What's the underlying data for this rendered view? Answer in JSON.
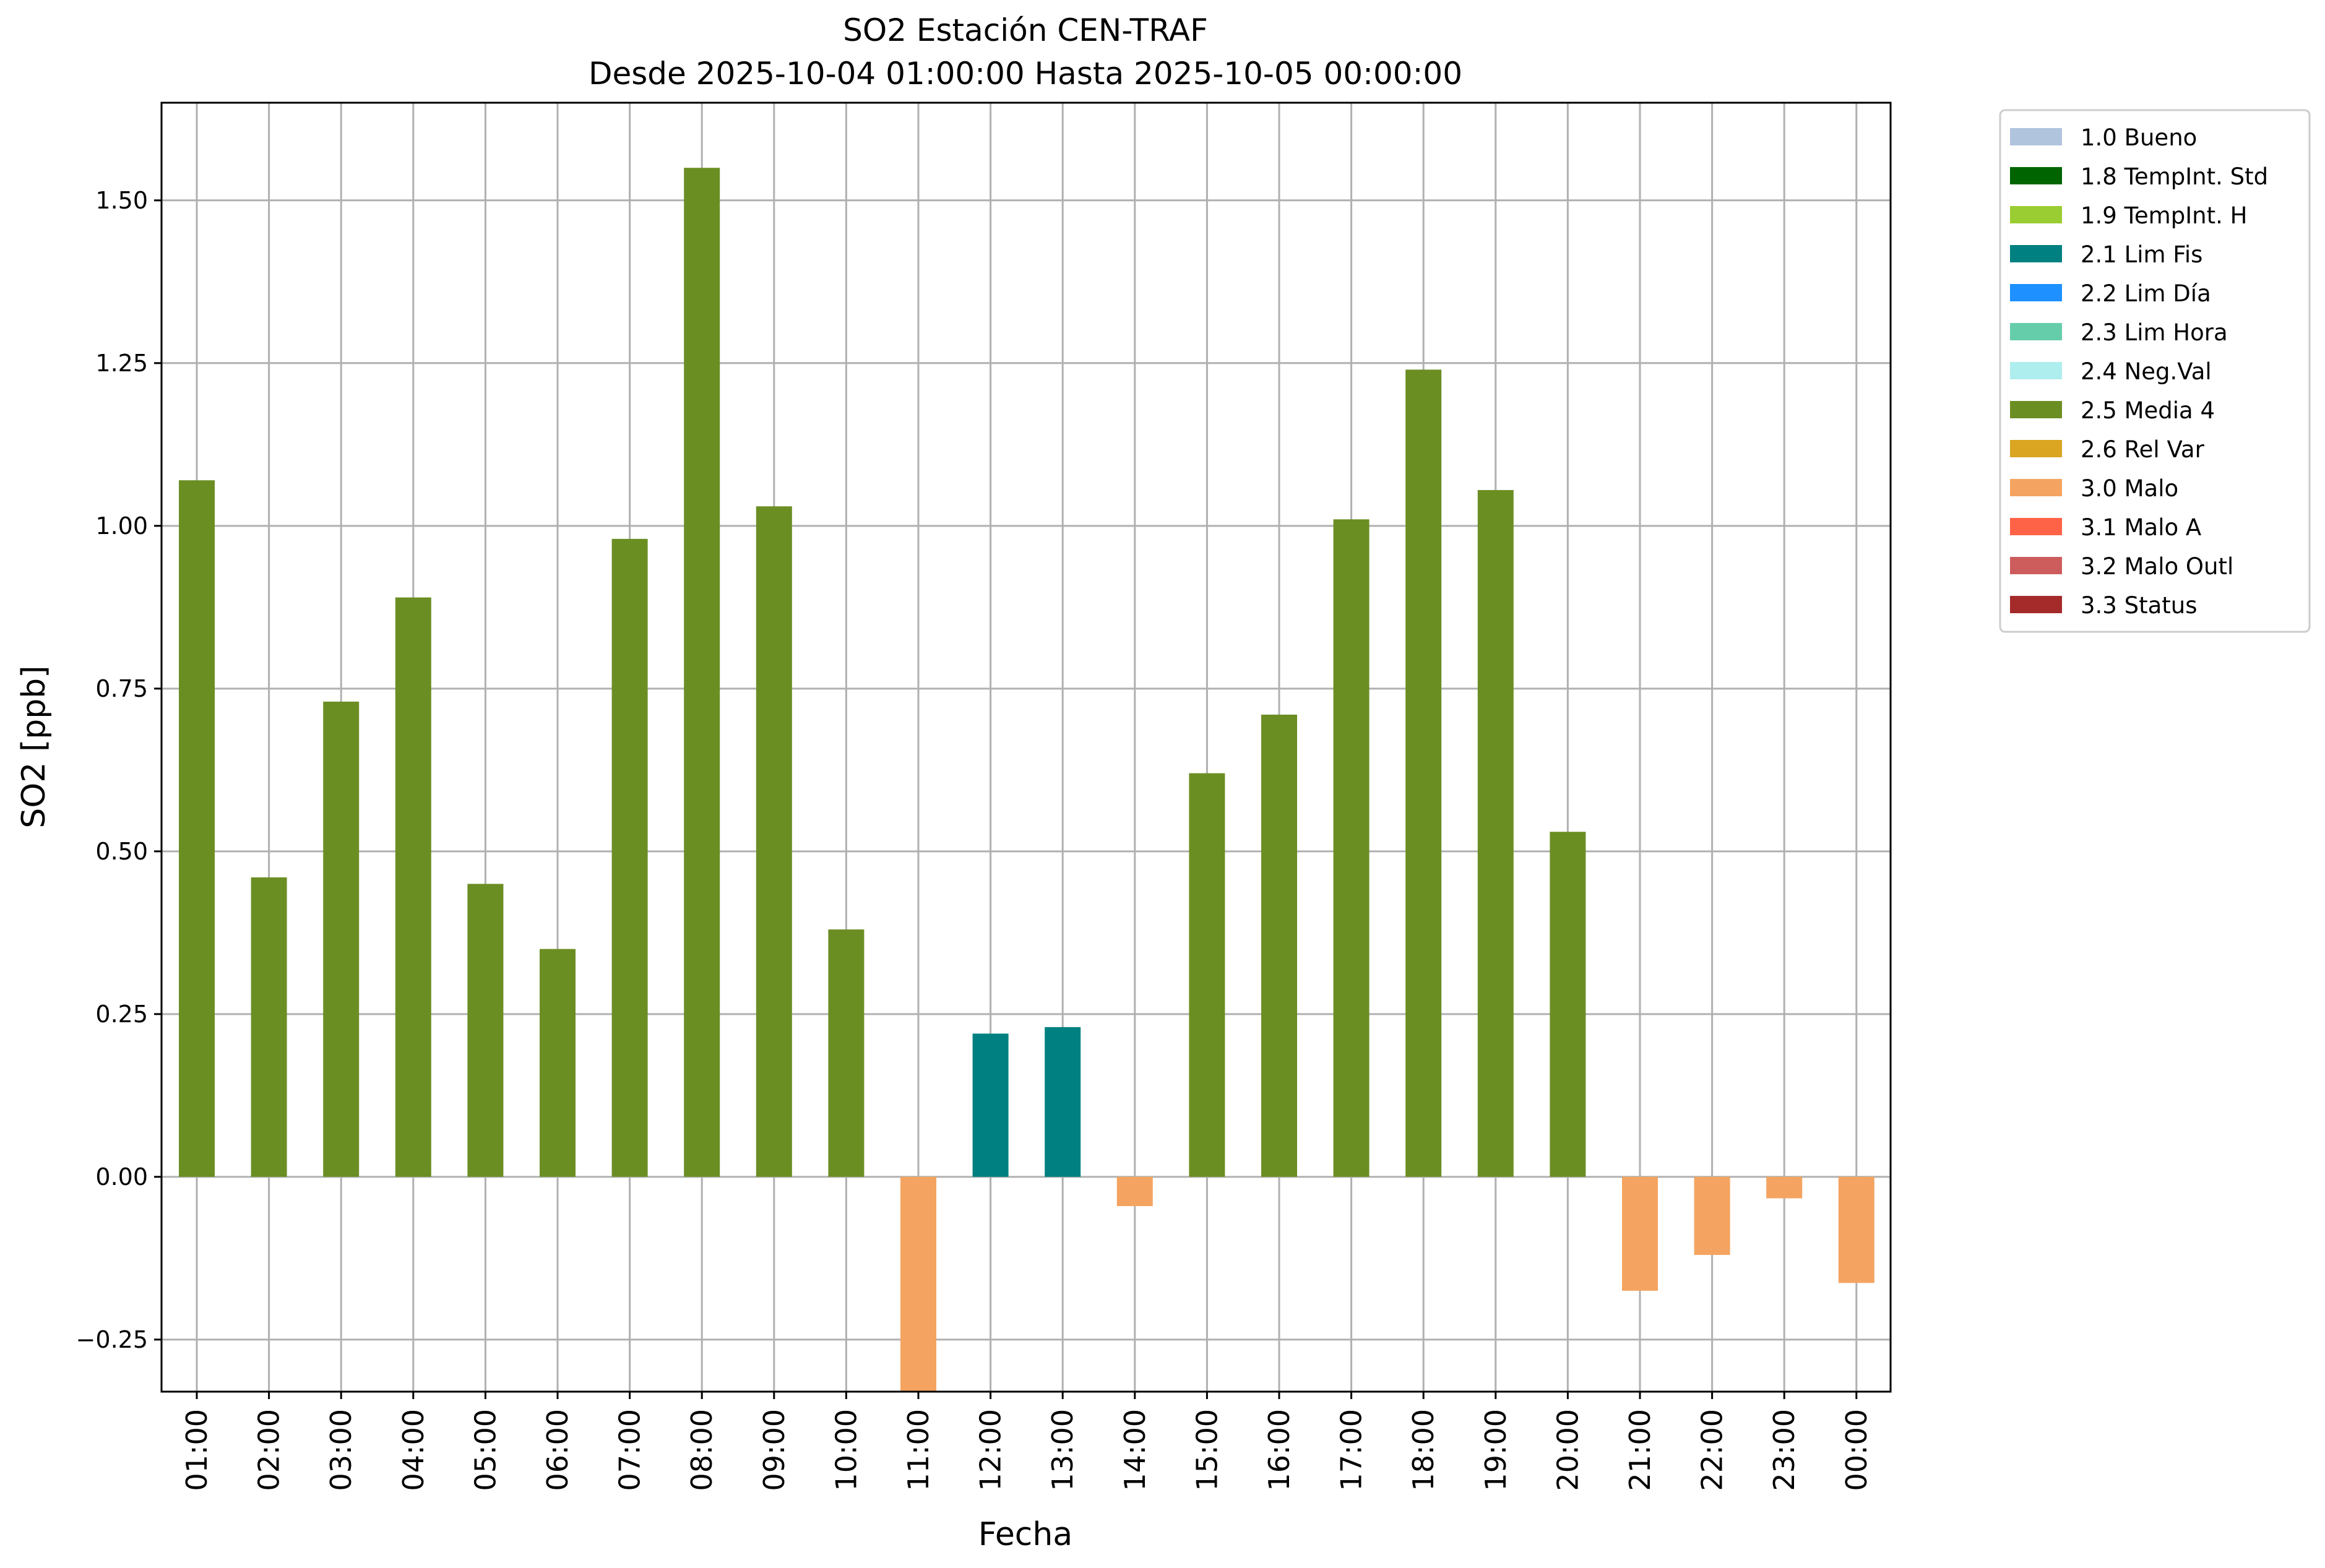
{
  "chart_data": {
    "type": "bar",
    "title": "SO2 Estación CEN-TRAF",
    "subtitle": "Desde 2025-10-04 01:00:00 Hasta 2025-10-05 00:00:00",
    "xlabel": "Fecha",
    "ylabel": "SO2 [ppb]",
    "ylim": [
      -0.33,
      1.65
    ],
    "yticks": [
      -0.25,
      0.0,
      0.25,
      0.5,
      0.75,
      1.0,
      1.25,
      1.5
    ],
    "ytick_labels": [
      "−0.25",
      "0.00",
      "0.25",
      "0.50",
      "0.75",
      "1.00",
      "1.25",
      "1.50"
    ],
    "grid": true,
    "legend_position": "outside-top-right",
    "categories": [
      "01:00",
      "02:00",
      "03:00",
      "04:00",
      "05:00",
      "06:00",
      "07:00",
      "08:00",
      "09:00",
      "10:00",
      "11:00",
      "12:00",
      "13:00",
      "14:00",
      "15:00",
      "16:00",
      "17:00",
      "18:00",
      "19:00",
      "20:00",
      "21:00",
      "22:00",
      "23:00",
      "00:00"
    ],
    "values": [
      1.07,
      0.46,
      0.73,
      0.89,
      0.45,
      0.35,
      0.98,
      1.55,
      1.03,
      0.38,
      -0.33,
      0.22,
      0.23,
      -0.045,
      0.62,
      0.71,
      1.01,
      1.24,
      1.055,
      0.53,
      -0.175,
      -0.12,
      -0.033,
      -0.163
    ],
    "flags": [
      "2.5 Media 4",
      "2.5 Media 4",
      "2.5 Media 4",
      "2.5 Media 4",
      "2.5 Media 4",
      "2.5 Media 4",
      "2.5 Media 4",
      "2.5 Media 4",
      "2.5 Media 4",
      "2.5 Media 4",
      "3.0 Malo",
      "2.1 Lim Fis",
      "2.1 Lim Fis",
      "3.0 Malo",
      "2.5 Media 4",
      "2.5 Media 4",
      "2.5 Media 4",
      "2.5 Media 4",
      "2.5 Media 4",
      "2.5 Media 4",
      "3.0 Malo",
      "3.0 Malo",
      "3.0 Malo",
      "3.0 Malo"
    ],
    "legend": [
      {
        "label": "1.0 Bueno",
        "color": "#b0c4de"
      },
      {
        "label": "1.8 TempInt. Std",
        "color": "#006400"
      },
      {
        "label": "1.9 TempInt. H",
        "color": "#9acd32"
      },
      {
        "label": "2.1 Lim Fis",
        "color": "#008080"
      },
      {
        "label": "2.2 Lim Día",
        "color": "#1e90ff"
      },
      {
        "label": "2.3 Lim Hora",
        "color": "#66cdaa"
      },
      {
        "label": "2.4 Neg.Val",
        "color": "#afeeee"
      },
      {
        "label": "2.5 Media 4",
        "color": "#6b8e23"
      },
      {
        "label": "2.6 Rel Var",
        "color": "#daa520"
      },
      {
        "label": "3.0 Malo",
        "color": "#f4a460"
      },
      {
        "label": "3.1 Malo A",
        "color": "#ff6347"
      },
      {
        "label": "3.2 Malo Outl",
        "color": "#cd5c5c"
      },
      {
        "label": "3.3 Status",
        "color": "#a52a2a"
      }
    ]
  }
}
